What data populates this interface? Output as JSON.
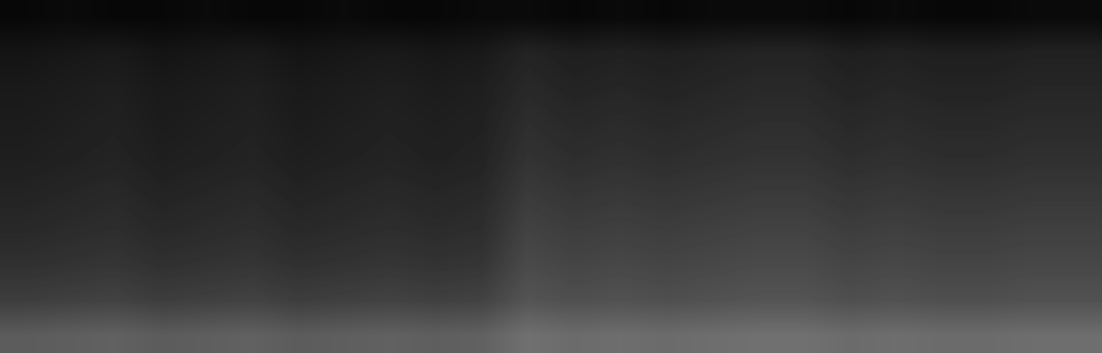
{
  "chart_data": {
    "type": "heatmap",
    "color": "gray",
    "tick_labels": false,
    "zlim": [
      0,
      1
    ],
    "cells": [
      [
        0.03,
        0.04,
        0.03,
        0.03,
        0.04,
        0.03,
        0.03,
        0.04,
        0.03,
        0.03,
        0.04,
        0.04,
        0.03,
        0.04,
        0.03,
        0.04,
        0.04,
        0.04,
        0.03,
        0.04,
        0.03,
        0.03,
        0.04,
        0.04
      ],
      [
        0.08,
        0.09,
        0.1,
        0.08,
        0.09,
        0.1,
        0.08,
        0.09,
        0.1,
        0.09,
        0.1,
        0.14,
        0.12,
        0.13,
        0.12,
        0.13,
        0.14,
        0.14,
        0.12,
        0.13,
        0.12,
        0.12,
        0.13,
        0.13
      ],
      [
        0.1,
        0.11,
        0.12,
        0.1,
        0.11,
        0.12,
        0.1,
        0.11,
        0.12,
        0.11,
        0.12,
        0.16,
        0.14,
        0.15,
        0.14,
        0.15,
        0.16,
        0.16,
        0.14,
        0.15,
        0.14,
        0.14,
        0.15,
        0.15
      ],
      [
        0.11,
        0.12,
        0.13,
        0.11,
        0.12,
        0.13,
        0.11,
        0.12,
        0.13,
        0.12,
        0.13,
        0.18,
        0.16,
        0.17,
        0.16,
        0.17,
        0.18,
        0.18,
        0.16,
        0.17,
        0.16,
        0.16,
        0.17,
        0.17
      ],
      [
        0.12,
        0.13,
        0.14,
        0.12,
        0.13,
        0.14,
        0.12,
        0.13,
        0.14,
        0.13,
        0.14,
        0.2,
        0.18,
        0.19,
        0.18,
        0.19,
        0.2,
        0.2,
        0.18,
        0.19,
        0.18,
        0.18,
        0.19,
        0.19
      ],
      [
        0.14,
        0.15,
        0.16,
        0.14,
        0.15,
        0.16,
        0.14,
        0.15,
        0.16,
        0.15,
        0.16,
        0.23,
        0.21,
        0.22,
        0.21,
        0.22,
        0.23,
        0.23,
        0.21,
        0.22,
        0.21,
        0.21,
        0.22,
        0.22
      ],
      [
        0.16,
        0.17,
        0.18,
        0.16,
        0.17,
        0.18,
        0.16,
        0.17,
        0.18,
        0.17,
        0.18,
        0.26,
        0.24,
        0.25,
        0.24,
        0.25,
        0.26,
        0.26,
        0.24,
        0.25,
        0.24,
        0.24,
        0.25,
        0.25
      ],
      [
        0.19,
        0.2,
        0.21,
        0.19,
        0.2,
        0.21,
        0.19,
        0.2,
        0.21,
        0.2,
        0.21,
        0.29,
        0.27,
        0.28,
        0.27,
        0.28,
        0.29,
        0.29,
        0.27,
        0.28,
        0.27,
        0.27,
        0.28,
        0.28
      ],
      [
        0.24,
        0.25,
        0.26,
        0.24,
        0.25,
        0.26,
        0.24,
        0.25,
        0.26,
        0.25,
        0.26,
        0.33,
        0.31,
        0.32,
        0.31,
        0.32,
        0.33,
        0.33,
        0.31,
        0.32,
        0.31,
        0.31,
        0.32,
        0.32
      ],
      [
        0.36,
        0.37,
        0.38,
        0.36,
        0.37,
        0.38,
        0.36,
        0.37,
        0.38,
        0.37,
        0.38,
        0.44,
        0.42,
        0.43,
        0.42,
        0.43,
        0.44,
        0.44,
        0.42,
        0.43,
        0.42,
        0.42,
        0.43,
        0.43
      ]
    ]
  }
}
